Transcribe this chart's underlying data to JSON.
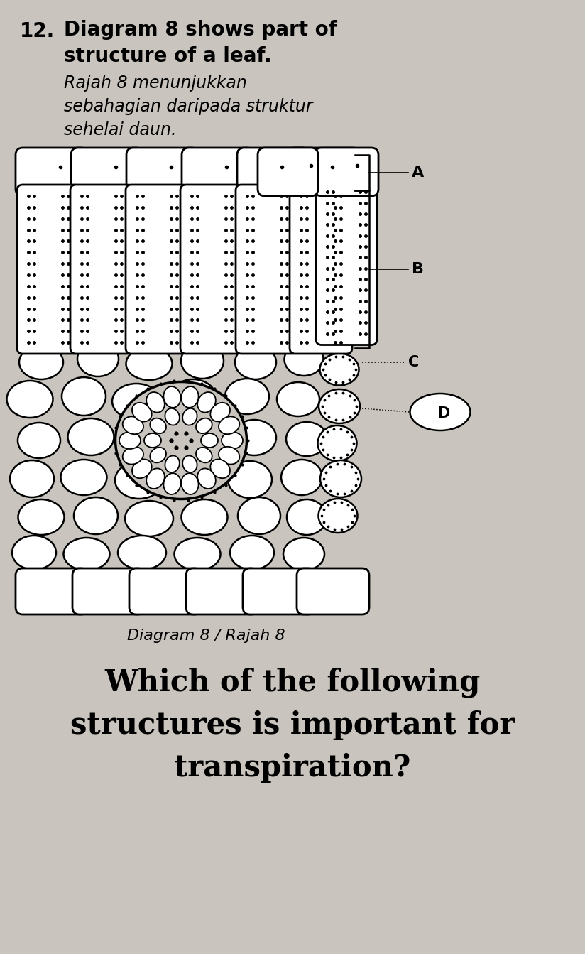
{
  "background_color": "#c9c5be",
  "title_number": "12.",
  "title_line1": "Diagram 8 shows part of",
  "title_line2": "structure of a leaf.",
  "title_line3": "Rajah 8 menunjukkan",
  "title_line4": "sebahagian daripada struktur",
  "title_line5": "sehelai daun.",
  "caption": "Diagram 8 / Rajah 8",
  "question_line1": "Which of the following",
  "question_line2": "structures is important for",
  "label_fontsize": 14,
  "text_fontsize_large": 20,
  "text_fontsize_medium": 17,
  "text_fontsize_small": 14,
  "question_fontsize": 30
}
